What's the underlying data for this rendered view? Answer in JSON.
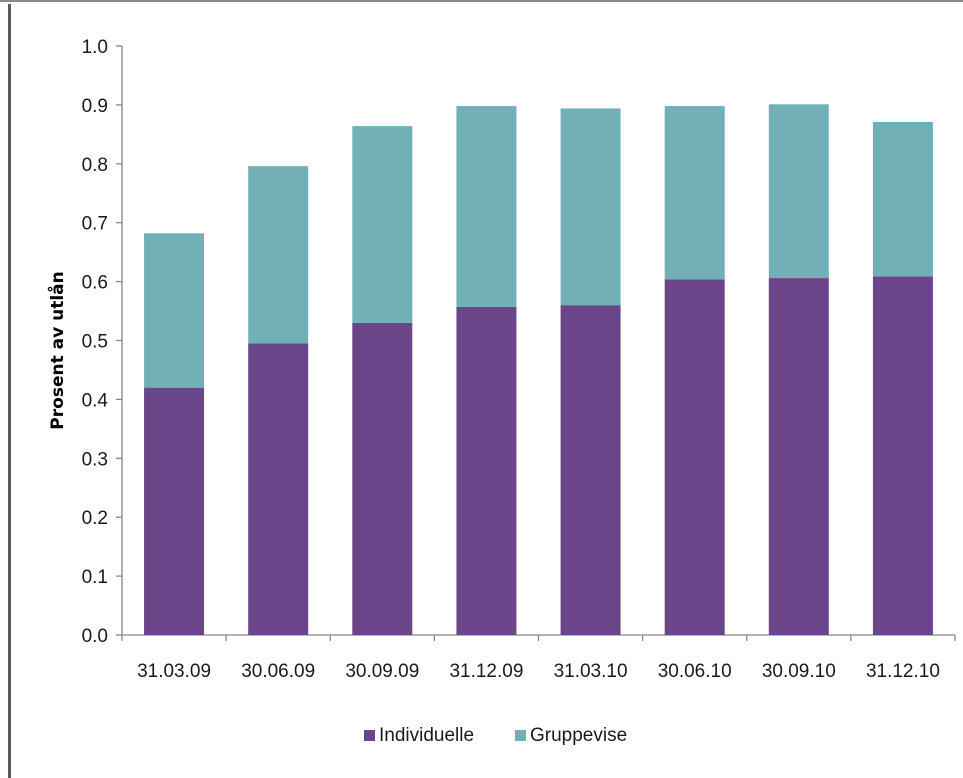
{
  "chart_data": {
    "type": "bar",
    "stacked": true,
    "categories": [
      "31.03.09",
      "30.06.09",
      "30.09.09",
      "31.12.09",
      "31.03.10",
      "30.06.10",
      "30.09.10",
      "31.12.10"
    ],
    "series": [
      {
        "name": "Individuelle",
        "color": "#6b4589",
        "values": [
          0.42,
          0.495,
          0.53,
          0.557,
          0.56,
          0.604,
          0.606,
          0.609
        ]
      },
      {
        "name": "Gruppevise",
        "color": "#72b0b8",
        "values": [
          0.262,
          0.301,
          0.334,
          0.341,
          0.334,
          0.294,
          0.295,
          0.262
        ]
      }
    ],
    "ylabel": "Prosent av utlån",
    "xlabel": "",
    "title": "",
    "ylim": [
      0,
      1.0
    ],
    "yticks": [
      "0.0",
      "0.1",
      "0.2",
      "0.3",
      "0.4",
      "0.5",
      "0.6",
      "0.7",
      "0.8",
      "0.9",
      "1.0"
    ],
    "grid": false,
    "legend_position": "bottom"
  }
}
